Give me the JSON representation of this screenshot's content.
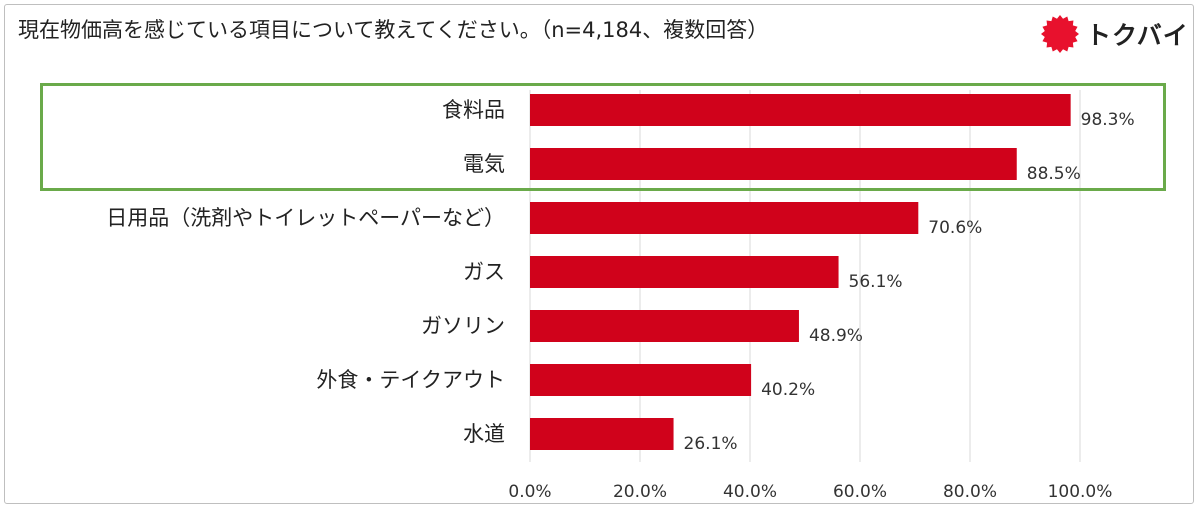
{
  "title": "現在物価高を感じている項目について教えてください。（n=4,184、複数回答）",
  "logo": {
    "text": "トクバイ",
    "icon": "red-burst-circle-icon",
    "color": "#e8112d"
  },
  "chart_data": {
    "type": "bar",
    "orientation": "horizontal",
    "categories": [
      "食料品",
      "電気",
      "日用品（洗剤やトイレットペーパーなど）",
      "ガス",
      "ガソリン",
      "外食・テイクアウト",
      "水道"
    ],
    "values": [
      98.3,
      88.5,
      70.6,
      56.1,
      48.9,
      40.2,
      26.1
    ],
    "value_labels": [
      "98.3%",
      "88.5%",
      "70.6%",
      "56.1%",
      "48.9%",
      "40.2%",
      "26.1%"
    ],
    "xlim": [
      0,
      100
    ],
    "x_ticks": [
      0,
      20,
      40,
      60,
      80,
      100
    ],
    "x_tick_labels": [
      "0.0%",
      "20.0%",
      "40.0%",
      "60.0%",
      "80.0%",
      "100.0%"
    ],
    "grid": true,
    "bar_color": "#d0021b",
    "highlight_color": "#6aaa4a",
    "highlighted_categories": [
      "食料品",
      "電気"
    ]
  }
}
